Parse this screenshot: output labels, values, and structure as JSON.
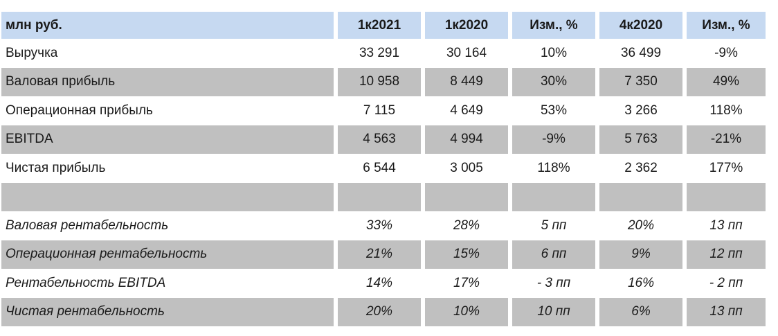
{
  "table": {
    "headers": [
      "млн руб.",
      "1к2021",
      "1к2020",
      "Изм., %",
      "4к2020",
      "Изм., %"
    ],
    "rows": [
      {
        "label": "Выручка",
        "values": [
          "33 291",
          "30 164",
          "10%",
          "36 499",
          "-9%"
        ]
      },
      {
        "label": "Валовая прибыль",
        "values": [
          "10 958",
          "8 449",
          "30%",
          "7 350",
          "49%"
        ]
      },
      {
        "label": "Операционная прибыль",
        "values": [
          "7 115",
          "4 649",
          "53%",
          "3 266",
          "118%"
        ]
      },
      {
        "label": "EBITDA",
        "values": [
          "4 563",
          "4 994",
          "-9%",
          "5 763",
          "-21%"
        ]
      },
      {
        "label": "Чистая прибыль",
        "values": [
          "6 544",
          "3 005",
          "118%",
          "2 362",
          "177%"
        ]
      },
      {
        "label": "",
        "values": [
          "",
          "",
          "",
          "",
          ""
        ]
      },
      {
        "label": "Валовая рентабельность",
        "values": [
          "33%",
          "28%",
          "5 пп",
          "20%",
          "13 пп"
        ]
      },
      {
        "label": "Операционная рентабельность",
        "values": [
          "21%",
          "15%",
          "6 пп",
          "9%",
          "12 пп"
        ]
      },
      {
        "label": "Рентабельность EBITDA",
        "values": [
          "14%",
          "17%",
          "- 3 пп",
          "16%",
          "- 2 пп"
        ]
      },
      {
        "label": "Чистая рентабельность",
        "values": [
          "20%",
          "10%",
          "10 пп",
          "6%",
          "13 пп"
        ]
      }
    ]
  },
  "colors": {
    "header_bg": "#c6d9f1",
    "row_shade": "#c0c0c0",
    "background": "#ffffff"
  }
}
